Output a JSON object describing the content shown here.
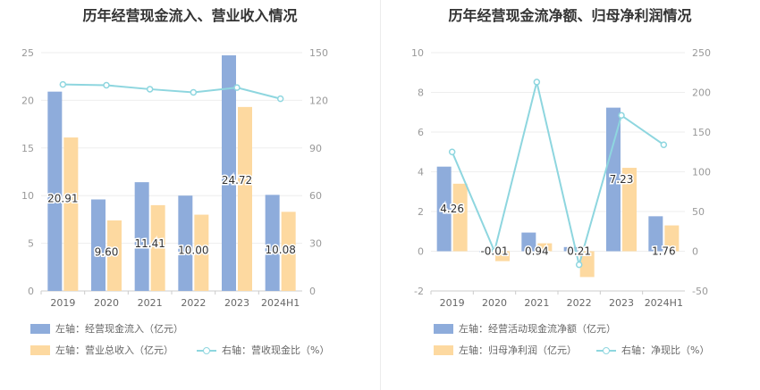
{
  "colors": {
    "bar1": "#8eacdb",
    "bar2": "#fdd9a0",
    "line": "#8ed6df",
    "grid": "#eeeeee"
  },
  "left": {
    "title": "历年经营现金流入、营业收入情况",
    "legend": {
      "bar1": "左轴：经营现金流入（亿元）",
      "bar2": "左轴：营业总收入（亿元）",
      "line": "右轴：营收现金比（%）"
    }
  },
  "right": {
    "title": "历年经营现金流净额、归母净利润情况",
    "legend": {
      "bar1": "左轴：经营活动现金流净额（亿元）",
      "bar2": "左轴：归母净利润（亿元）",
      "line": "右轴：净现比（%）"
    }
  },
  "chart_data": [
    {
      "type": "bar",
      "title": "历年经营现金流入、营业收入情况",
      "categories": [
        "2019",
        "2020",
        "2021",
        "2022",
        "2023",
        "2024H1"
      ],
      "left_axis": {
        "min": 0,
        "max": 25,
        "ticks": [
          "0",
          "5",
          "10",
          "15",
          "20",
          "25"
        ]
      },
      "right_axis": {
        "min": 0,
        "max": 150,
        "ticks": [
          "0",
          "30",
          "60",
          "90",
          "120",
          "150"
        ]
      },
      "series": [
        {
          "name": "左轴：经营现金流入（亿元）",
          "axis": "left",
          "type": "bar",
          "values": [
            20.91,
            9.6,
            11.41,
            10.0,
            24.72,
            10.08
          ],
          "labels": [
            "20.91",
            "9.60",
            "11.41",
            "10.00",
            "24.72",
            "10.08"
          ]
        },
        {
          "name": "左轴：营业总收入（亿元）",
          "axis": "left",
          "type": "bar",
          "values": [
            16.1,
            7.4,
            9.0,
            8.0,
            19.3,
            8.3
          ]
        },
        {
          "name": "右轴：营收现金比（%）",
          "axis": "right",
          "type": "line",
          "values": [
            130,
            129.5,
            127,
            125,
            128,
            121
          ]
        }
      ]
    },
    {
      "type": "bar",
      "title": "历年经营现金流净额、归母净利润情况",
      "categories": [
        "2019",
        "2020",
        "2021",
        "2022",
        "2023",
        "2024H1"
      ],
      "left_axis": {
        "min": -2,
        "max": 10,
        "ticks": [
          "-2",
          "0",
          "2",
          "4",
          "6",
          "8",
          "10"
        ]
      },
      "right_axis": {
        "min": -50,
        "max": 250,
        "ticks": [
          "-50",
          "0",
          "50",
          "100",
          "150",
          "200",
          "250"
        ]
      },
      "series": [
        {
          "name": "左轴：经营活动现金流净额（亿元）",
          "axis": "left",
          "type": "bar",
          "values": [
            4.26,
            -0.01,
            0.94,
            0.21,
            7.23,
            1.76
          ],
          "labels": [
            "4.26",
            "-0.01",
            "0.94",
            "0.21",
            "7.23",
            "1.76"
          ]
        },
        {
          "name": "左轴：归母净利润（亿元）",
          "axis": "left",
          "type": "bar",
          "values": [
            3.4,
            -0.5,
            0.4,
            -1.3,
            4.2,
            1.3
          ]
        },
        {
          "name": "右轴：净现比（%）",
          "axis": "right",
          "type": "line",
          "values": [
            125,
            0,
            213,
            -17,
            171,
            134
          ]
        }
      ]
    }
  ]
}
